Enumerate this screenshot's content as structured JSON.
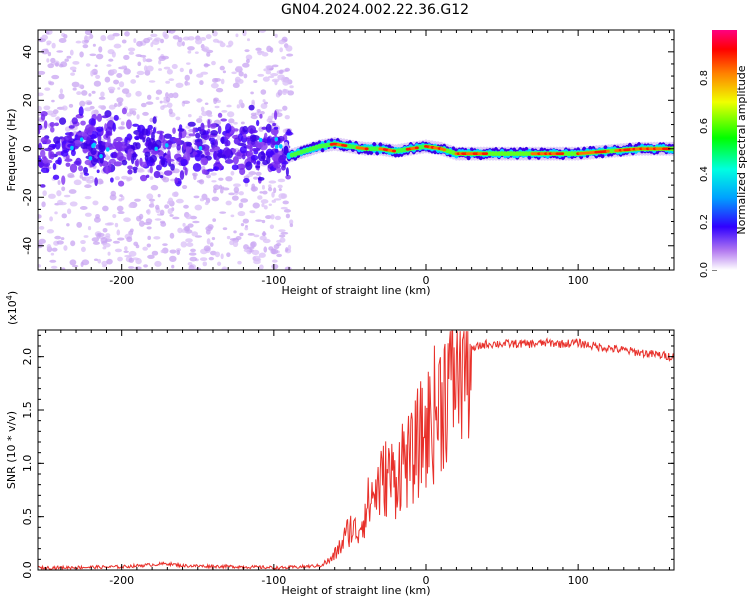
{
  "title": "GN04.2024.002.22.36.G12",
  "chart_data": [
    {
      "type": "heatmap",
      "xlabel": "Height of straight line (km)",
      "ylabel": "Frequency (Hz)",
      "xlim": [
        -255,
        163
      ],
      "ylim": [
        -50,
        49
      ],
      "xticks": [
        -200,
        -100,
        0,
        100
      ],
      "yticks": [
        -40,
        -20,
        0,
        20,
        40
      ],
      "colorbar": {
        "label": "Normalized spectral amplitude",
        "range": [
          0,
          1
        ],
        "ticks": [
          "0.0",
          "0.2",
          "0.4",
          "0.6",
          "0.8"
        ],
        "tick_values": [
          0,
          0.2,
          0.4,
          0.6,
          0.8
        ]
      },
      "ridge": [
        {
          "x": -90,
          "y": -3
        },
        {
          "x": -80,
          "y": -1
        },
        {
          "x": -70,
          "y": 1
        },
        {
          "x": -60,
          "y": 2
        },
        {
          "x": -50,
          "y": 1
        },
        {
          "x": -40,
          "y": 0
        },
        {
          "x": -30,
          "y": 0
        },
        {
          "x": -20,
          "y": -1
        },
        {
          "x": -10,
          "y": 0
        },
        {
          "x": 0,
          "y": 1
        },
        {
          "x": 10,
          "y": 0
        },
        {
          "x": 20,
          "y": -2
        },
        {
          "x": 40,
          "y": -2
        },
        {
          "x": 60,
          "y": -2
        },
        {
          "x": 80,
          "y": -2
        },
        {
          "x": 100,
          "y": -2
        },
        {
          "x": 120,
          "y": -1
        },
        {
          "x": 140,
          "y": 0
        },
        {
          "x": 163,
          "y": 0
        }
      ]
    },
    {
      "type": "line",
      "xlabel": "Height of straight line (km)",
      "ylabel": "SNR (10 * v/v)",
      "scale_label": "(x10",
      "scale_exponent": "4",
      "xlim": [
        -255,
        163
      ],
      "ylim": [
        0,
        2.25
      ],
      "xticks": [
        -200,
        -100,
        0,
        100
      ],
      "yticks": [
        "0.0",
        "0.5",
        "1.0",
        "1.5",
        "2.0"
      ],
      "ytick_values": [
        0,
        0.5,
        1.0,
        1.5,
        2.0
      ],
      "color": "#e8302a",
      "series": [
        {
          "x": [
            -255,
            -200,
            -170,
            -160,
            -120,
            -95,
            -70,
            -62,
            -55,
            -50,
            -45,
            -40,
            -35,
            -30,
            -25,
            -20,
            -15,
            -10,
            -5,
            0,
            5,
            10,
            15,
            20,
            25,
            30,
            35,
            40,
            50,
            60,
            70,
            80,
            90,
            100,
            110,
            120,
            130,
            140,
            150,
            163
          ],
          "y": [
            0.02,
            0.03,
            0.06,
            0.04,
            0.03,
            0.02,
            0.04,
            0.1,
            0.25,
            0.4,
            0.35,
            0.55,
            0.7,
            0.8,
            0.9,
            0.85,
            1.05,
            1.0,
            1.2,
            1.3,
            1.45,
            1.6,
            1.8,
            1.92,
            2.02,
            2.06,
            2.1,
            2.12,
            2.12,
            2.12,
            2.12,
            2.13,
            2.12,
            2.13,
            2.1,
            2.08,
            2.06,
            2.04,
            2.02,
            2.0
          ]
        }
      ]
    }
  ]
}
